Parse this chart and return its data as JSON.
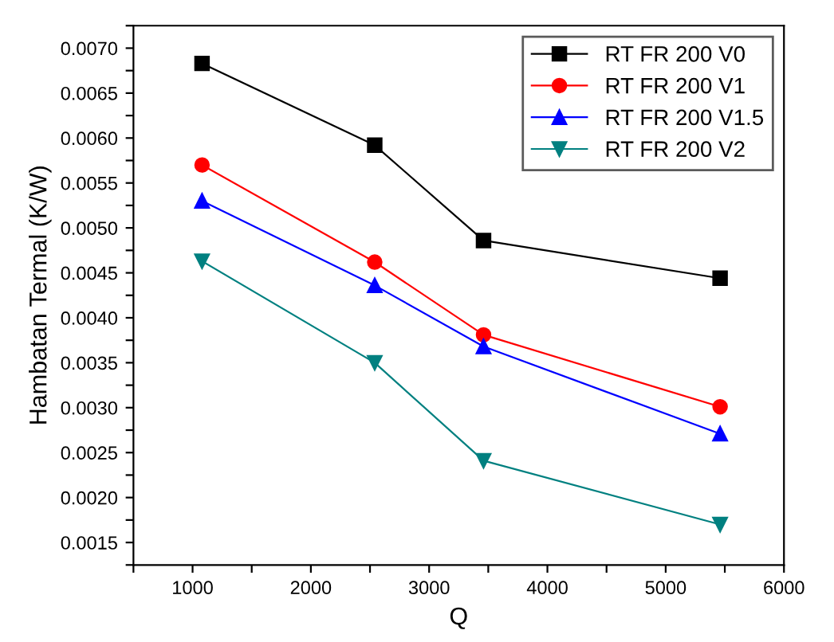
{
  "chart_data": {
    "type": "line",
    "xlabel": "Q",
    "ylabel": "Hambatan Termal (K/W)",
    "x": [
      1080,
      2540,
      3460,
      5460
    ],
    "series": [
      {
        "name": "RT FR 200 V0",
        "color": "#000000",
        "marker": "square",
        "values": [
          0.00683,
          0.00592,
          0.00486,
          0.00444
        ]
      },
      {
        "name": "RT FR 200 V1",
        "color": "#ff0000",
        "marker": "circle",
        "values": [
          0.0057,
          0.00462,
          0.00381,
          0.00301
        ]
      },
      {
        "name": "RT FR 200 V1.5",
        "color": "#0000ff",
        "marker": "triangle",
        "values": [
          0.0053,
          0.00436,
          0.00368,
          0.00271
        ]
      },
      {
        "name": "RT FR 200 V2",
        "color": "#008080",
        "marker": "triangle_down",
        "values": [
          0.00463,
          0.0035,
          0.00241,
          0.0017
        ]
      }
    ],
    "xlim": [
      500,
      6000
    ],
    "ylim": [
      0.00125,
      0.00725
    ],
    "xticks": [
      {
        "value": 500,
        "label": null
      },
      1000,
      {
        "value": 1500,
        "label": null
      },
      2000,
      {
        "value": 2500,
        "label": null
      },
      3000,
      {
        "value": 3500,
        "label": null
      },
      4000,
      {
        "value": 4500,
        "label": null
      },
      5000,
      {
        "value": 5500,
        "label": null
      },
      6000
    ],
    "yticks": [
      {
        "value": 0.00125,
        "label": null
      },
      {
        "value": 0.0015,
        "label": "0.0015"
      },
      {
        "value": 0.00175,
        "label": null
      },
      {
        "value": 0.002,
        "label": "0.0020"
      },
      {
        "value": 0.00225,
        "label": null
      },
      {
        "value": 0.0025,
        "label": "0.0025"
      },
      {
        "value": 0.00275,
        "label": null
      },
      {
        "value": 0.003,
        "label": "0.0030"
      },
      {
        "value": 0.00325,
        "label": null
      },
      {
        "value": 0.0035,
        "label": "0.0035"
      },
      {
        "value": 0.00375,
        "label": null
      },
      {
        "value": 0.004,
        "label": "0.0040"
      },
      {
        "value": 0.00425,
        "label": null
      },
      {
        "value": 0.0045,
        "label": "0.0045"
      },
      {
        "value": 0.00475,
        "label": null
      },
      {
        "value": 0.005,
        "label": "0.0050"
      },
      {
        "value": 0.00525,
        "label": null
      },
      {
        "value": 0.0055,
        "label": "0.0055"
      },
      {
        "value": 0.00575,
        "label": null
      },
      {
        "value": 0.006,
        "label": "0.0060"
      },
      {
        "value": 0.00625,
        "label": null
      },
      {
        "value": 0.0065,
        "label": "0.0065"
      },
      {
        "value": 0.00675,
        "label": null
      },
      {
        "value": 0.007,
        "label": "0.0070"
      },
      {
        "value": 0.00725,
        "label": null
      }
    ],
    "grid": false,
    "legend": "top right",
    "line_style": "solid"
  }
}
